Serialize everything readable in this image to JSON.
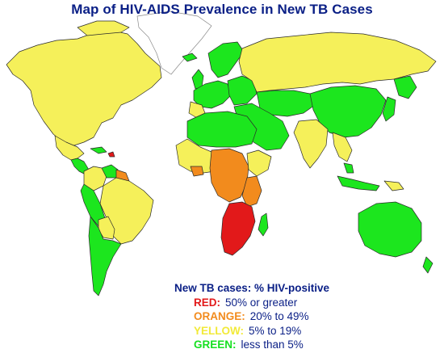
{
  "title": "Map of HIV-AIDS Prevalence in New TB Cases",
  "legend": {
    "title": "New TB cases: % HIV-positive",
    "items": [
      {
        "label": "RED:",
        "range": "50% or greater",
        "color": "#e2191a"
      },
      {
        "label": "ORANGE:",
        "range": "20% to 49%",
        "color": "#f28b1d"
      },
      {
        "label": "YELLOW:",
        "range": "5% to 19%",
        "color": "#f2ea39"
      },
      {
        "label": "GREEN:",
        "range": "less than 5%",
        "color": "#16e020"
      }
    ]
  },
  "colors": {
    "red": "#e2191a",
    "orange": "#f28b1d",
    "yellow": "#f5f05a",
    "green": "#1ce61e",
    "no_data": "#ffffff",
    "border": "#2a2a2a",
    "title": "#0a1f86"
  }
}
